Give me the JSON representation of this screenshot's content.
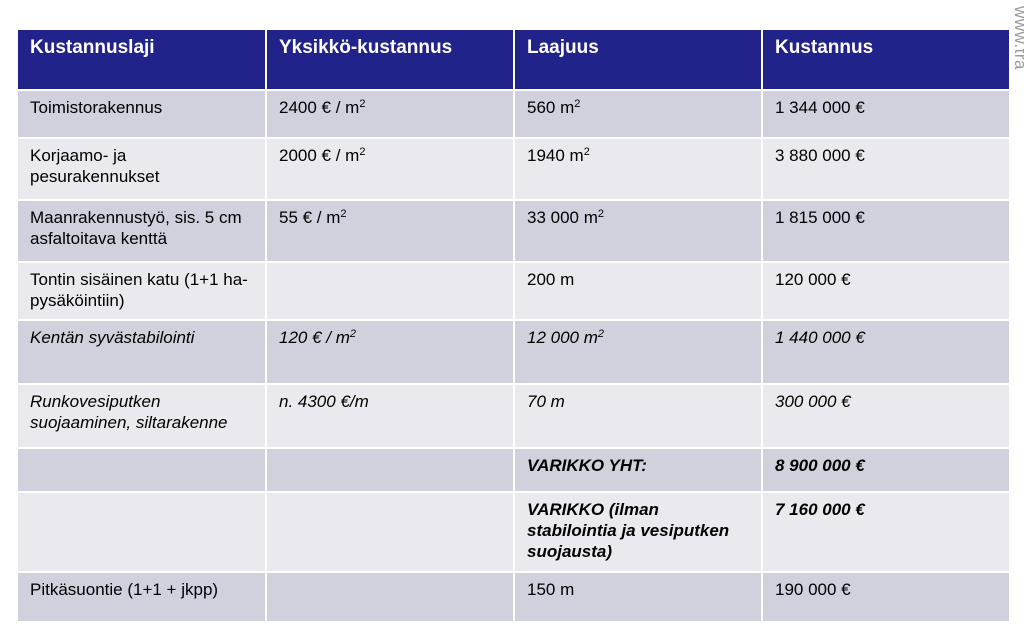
{
  "watermark": "www.tra",
  "headers": [
    "Kustannuslaji",
    "Yksikkö-kustannus",
    "Laajuus",
    "Kustannus"
  ],
  "rows": [
    {
      "type": "Toimistorakennus",
      "unit_cost": "2400 € / m",
      "unit_cost_sup": "2",
      "extent": "560 m",
      "extent_sup": "2",
      "cost": "1 344 000 €"
    },
    {
      "type": "Korjaamo- ja pesurakennukset",
      "unit_cost": "2000 € / m",
      "unit_cost_sup": "2",
      "extent": "1940 m",
      "extent_sup": "2",
      "cost": "3 880 000 €"
    },
    {
      "type": "Maanrakennustyö, sis. 5 cm asfaltoitava kenttä",
      "unit_cost": "55 € / m",
      "unit_cost_sup": "2",
      "extent": "33 000 m",
      "extent_sup": "2",
      "cost": "1 815 000 €"
    },
    {
      "type": "Tontin sisäinen katu (1+1 ha-pysäköintiin)",
      "unit_cost": "",
      "extent": "200 m",
      "cost": "120 000 €"
    },
    {
      "type": "Kentän syvästabilointi",
      "unit_cost": "120 € / m",
      "unit_cost_sup": "2",
      "extent": "12 000 m",
      "extent_sup": "2",
      "cost": "1 440 000 €"
    },
    {
      "type": "Runkovesiputken suojaaminen, siltarakenne",
      "unit_cost": "n. 4300 €/m",
      "extent": "70 m",
      "cost": "300 000 €"
    },
    {
      "type": "",
      "unit_cost": "",
      "extent": "VARIKKO YHT:",
      "cost": "8 900 000 €"
    },
    {
      "type": "",
      "unit_cost": "",
      "extent": "VARIKKO (ilman stabilointia ja vesiputken suojausta)",
      "cost": "7 160 000 €"
    },
    {
      "type": "Pitkäsuontie (1+1 + jkpp)",
      "unit_cost": "",
      "extent": "150 m",
      "cost": "190 000 €"
    }
  ]
}
